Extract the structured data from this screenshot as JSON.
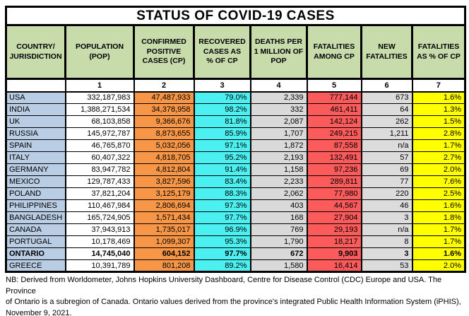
{
  "title": "STATUS OF COVID-19 CASES",
  "colors": {
    "header_green": "#c8dcab",
    "country_blue": "#b9cde5",
    "confirmed_orange": "#f79646",
    "recovered_cyan": "#4df0f0",
    "deaths_gray": "#d9d9d9",
    "fatalities_red": "#fb5b5b",
    "new_fatalities_gray": "#dcdcdc",
    "fatalities_pct_yellow": "#ffff00",
    "border_black": "#000000"
  },
  "table": {
    "columns": [
      {
        "label": "COUNTRY/\nJURISDICTION",
        "num": ""
      },
      {
        "label": "POPULATION\n(POP)",
        "num": "1"
      },
      {
        "label": "CONFIRMED\nPOSITIVE\nCASES (CP)",
        "num": "2"
      },
      {
        "label": "RECOVERED\nCASES AS\n% OF CP",
        "num": "3"
      },
      {
        "label": "DEATHS PER\n1 MILLION OF\nPOP",
        "num": "4"
      },
      {
        "label": "FATALITIES\nAMONG CP",
        "num": "5"
      },
      {
        "label": "NEW\nFATALITIES",
        "num": "6"
      },
      {
        "label": "FATALITIES\nAS % OF CP",
        "num": "7"
      }
    ],
    "rows": [
      {
        "country": "USA",
        "population": "332,187,983",
        "confirmed_cp": "47,487,933",
        "recovered_pct_of_cp": "79.0%",
        "deaths_per_1m_pop": "2,339",
        "fatalities_among_cp": "777,144",
        "new_fatalities": "673",
        "fatalities_pct_of_cp": "1.6%",
        "bold": false
      },
      {
        "country": "INDIA",
        "population": "1,388,271,534",
        "confirmed_cp": "34,378,958",
        "recovered_pct_of_cp": "98.2%",
        "deaths_per_1m_pop": "332",
        "fatalities_among_cp": "461,411",
        "new_fatalities": "64",
        "fatalities_pct_of_cp": "1.3%",
        "bold": false
      },
      {
        "country": "UK",
        "population": "68,103,858",
        "confirmed_cp": "9,366,676",
        "recovered_pct_of_cp": "81.8%",
        "deaths_per_1m_pop": "2,087",
        "fatalities_among_cp": "142,124",
        "new_fatalities": "262",
        "fatalities_pct_of_cp": "1.5%",
        "bold": false
      },
      {
        "country": "RUSSIA",
        "population": "145,972,787",
        "confirmed_cp": "8,873,655",
        "recovered_pct_of_cp": "85.9%",
        "deaths_per_1m_pop": "1,707",
        "fatalities_among_cp": "249,215",
        "new_fatalities": "1,211",
        "fatalities_pct_of_cp": "2.8%",
        "bold": false
      },
      {
        "country": "SPAIN",
        "population": "46,765,870",
        "confirmed_cp": "5,032,056",
        "recovered_pct_of_cp": "97.1%",
        "deaths_per_1m_pop": "1,872",
        "fatalities_among_cp": "87,558",
        "new_fatalities": "n/a",
        "fatalities_pct_of_cp": "1.7%",
        "bold": false
      },
      {
        "country": "ITALY",
        "population": "60,407,322",
        "confirmed_cp": "4,818,705",
        "recovered_pct_of_cp": "95.2%",
        "deaths_per_1m_pop": "2,193",
        "fatalities_among_cp": "132,491",
        "new_fatalities": "57",
        "fatalities_pct_of_cp": "2.7%",
        "bold": false
      },
      {
        "country": "GERMANY",
        "population": "83,947,782",
        "confirmed_cp": "4,812,804",
        "recovered_pct_of_cp": "91.4%",
        "deaths_per_1m_pop": "1,158",
        "fatalities_among_cp": "97,236",
        "new_fatalities": "69",
        "fatalities_pct_of_cp": "2.0%",
        "bold": false
      },
      {
        "country": "MEXICO",
        "population": "129,787,433",
        "confirmed_cp": "3,827,596",
        "recovered_pct_of_cp": "83.4%",
        "deaths_per_1m_pop": "2,233",
        "fatalities_among_cp": "289,811",
        "new_fatalities": "77",
        "fatalities_pct_of_cp": "7.6%",
        "bold": false
      },
      {
        "country": "POLAND",
        "population": "37,821,204",
        "confirmed_cp": "3,125,179",
        "recovered_pct_of_cp": "88.3%",
        "deaths_per_1m_pop": "2,062",
        "fatalities_among_cp": "77,980",
        "new_fatalities": "220",
        "fatalities_pct_of_cp": "2.5%",
        "bold": false
      },
      {
        "country": "PHILIPPINES",
        "population": "110,467,984",
        "confirmed_cp": "2,806,694",
        "recovered_pct_of_cp": "97.3%",
        "deaths_per_1m_pop": "403",
        "fatalities_among_cp": "44,567",
        "new_fatalities": "46",
        "fatalities_pct_of_cp": "1.6%",
        "bold": false
      },
      {
        "country": "BANGLADESH",
        "population": "165,724,905",
        "confirmed_cp": "1,571,434",
        "recovered_pct_of_cp": "97.7%",
        "deaths_per_1m_pop": "168",
        "fatalities_among_cp": "27,904",
        "new_fatalities": "3",
        "fatalities_pct_of_cp": "1.8%",
        "bold": false
      },
      {
        "country": "CANADA",
        "population": "37,943,913",
        "confirmed_cp": "1,735,017",
        "recovered_pct_of_cp": "96.9%",
        "deaths_per_1m_pop": "769",
        "fatalities_among_cp": "29,193",
        "new_fatalities": "n/a",
        "fatalities_pct_of_cp": "1.7%",
        "bold": false
      },
      {
        "country": "PORTUGAL",
        "population": "10,178,469",
        "confirmed_cp": "1,099,307",
        "recovered_pct_of_cp": "95.3%",
        "deaths_per_1m_pop": "1,790",
        "fatalities_among_cp": "18,217",
        "new_fatalities": "8",
        "fatalities_pct_of_cp": "1.7%",
        "bold": false
      },
      {
        "country": "ONTARIO",
        "population": "14,745,040",
        "confirmed_cp": "604,152",
        "recovered_pct_of_cp": "97.7%",
        "deaths_per_1m_pop": "672",
        "fatalities_among_cp": "9,903",
        "new_fatalities": "3",
        "fatalities_pct_of_cp": "1.6%",
        "bold": true
      },
      {
        "country": "GREECE",
        "population": "10,391,789",
        "confirmed_cp": "801,208",
        "recovered_pct_of_cp": "89.2%",
        "deaths_per_1m_pop": "1,580",
        "fatalities_among_cp": "16,414",
        "new_fatalities": "53",
        "fatalities_pct_of_cp": "2.0%",
        "bold": false
      }
    ]
  },
  "note_lines": [
    "NB: Derived from Worldometer, Johns Hopkins University Dashboard, Centre for Disease Control (CDC) Europe and USA. The Province",
    "of Ontario is a subregion of Canada. Ontario values derived from the province's integrated Public Health Information System (iPHIS),",
    "November 9, 2021."
  ]
}
